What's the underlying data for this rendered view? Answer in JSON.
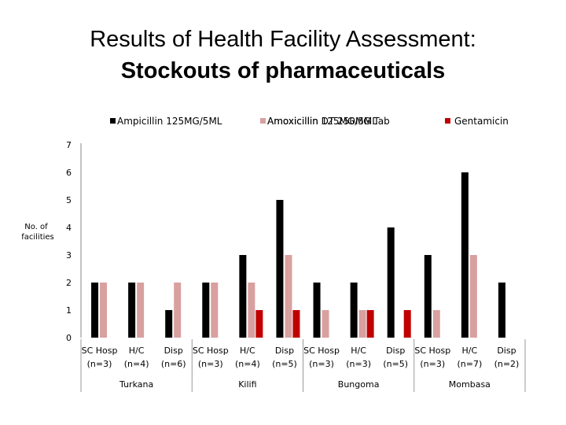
{
  "title": {
    "line1": "Results of Health Facility Assessment:",
    "line2": "Stockouts of pharmaceuticals"
  },
  "chart_data": {
    "type": "bar",
    "ylabel": "No. of facilities",
    "ylim": [
      0,
      7
    ],
    "yticks": [
      0,
      1,
      2,
      3,
      4,
      5,
      6,
      7
    ],
    "legend_position": "top",
    "grid": false,
    "categories": [
      {
        "label": "SC Hosp",
        "n": "(n=3)",
        "group": "Turkana"
      },
      {
        "label": "H/C",
        "n": "(n=4)",
        "group": "Turkana"
      },
      {
        "label": "Disp",
        "n": "(n=6)",
        "group": "Turkana"
      },
      {
        "label": "SC Hosp",
        "n": "(n=3)",
        "group": "Kilifi"
      },
      {
        "label": "H/C",
        "n": "(n=4)",
        "group": "Kilifi"
      },
      {
        "label": "Disp",
        "n": "(n=5)",
        "group": "Kilifi"
      },
      {
        "label": "SC Hosp",
        "n": "(n=3)",
        "group": "Bungoma"
      },
      {
        "label": "H/C",
        "n": "(n=3)",
        "group": "Bungoma"
      },
      {
        "label": "Disp",
        "n": "(n=5)",
        "group": "Bungoma"
      },
      {
        "label": "SC Hosp",
        "n": "(n=3)",
        "group": "Mombasa"
      },
      {
        "label": "H/C",
        "n": "(n=7)",
        "group": "Mombasa"
      },
      {
        "label": "Disp",
        "n": "(n=2)",
        "group": "Mombasa"
      }
    ],
    "groups": [
      "Turkana",
      "Kilifi",
      "Bungoma",
      "Mombasa"
    ],
    "series": [
      {
        "name": "Ampicillin 125MG/5ML",
        "color": "#000000",
        "values": [
          2,
          2,
          1,
          2,
          3,
          5,
          2,
          2,
          4,
          3,
          6,
          2
        ]
      },
      {
        "name": "Amoxicillin 125MG/5ML",
        "name_overlap": "Amoxicillin DT 250MG Tab",
        "color": "#d9a0a0",
        "values": [
          2,
          2,
          2,
          2,
          2,
          3,
          1,
          1,
          0,
          1,
          3,
          0
        ]
      },
      {
        "name": "Gentamicin",
        "color": "#c00000",
        "values": [
          0,
          0,
          0,
          0,
          1,
          1,
          0,
          1,
          1,
          0,
          0,
          0
        ]
      }
    ]
  }
}
